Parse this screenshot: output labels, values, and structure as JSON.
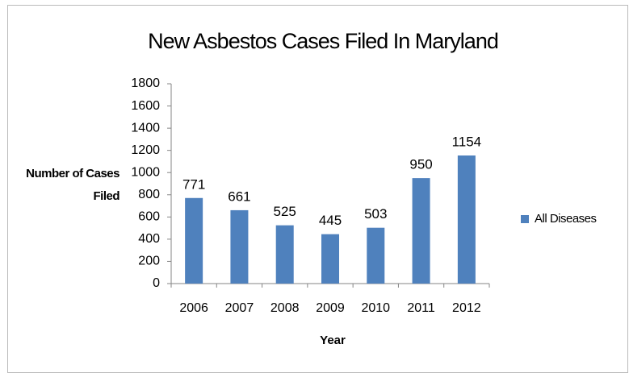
{
  "chart_data": {
    "type": "bar",
    "title": "New Asbestos Cases Filed In Maryland",
    "x_label": "Year",
    "y_label": "Number of Cases Filed",
    "categories": [
      "2006",
      "2007",
      "2008",
      "2009",
      "2010",
      "2011",
      "2012"
    ],
    "series": [
      {
        "name": "All Diseases",
        "color": "#4f81bd",
        "values": [
          771,
          661,
          525,
          445,
          503,
          950,
          1154
        ]
      }
    ],
    "ylim": [
      0,
      1800
    ],
    "yticks": [
      0,
      200,
      400,
      600,
      800,
      1000,
      1200,
      1400,
      1600,
      1800
    ],
    "grid": false,
    "legend": "right",
    "data_labels": true
  }
}
